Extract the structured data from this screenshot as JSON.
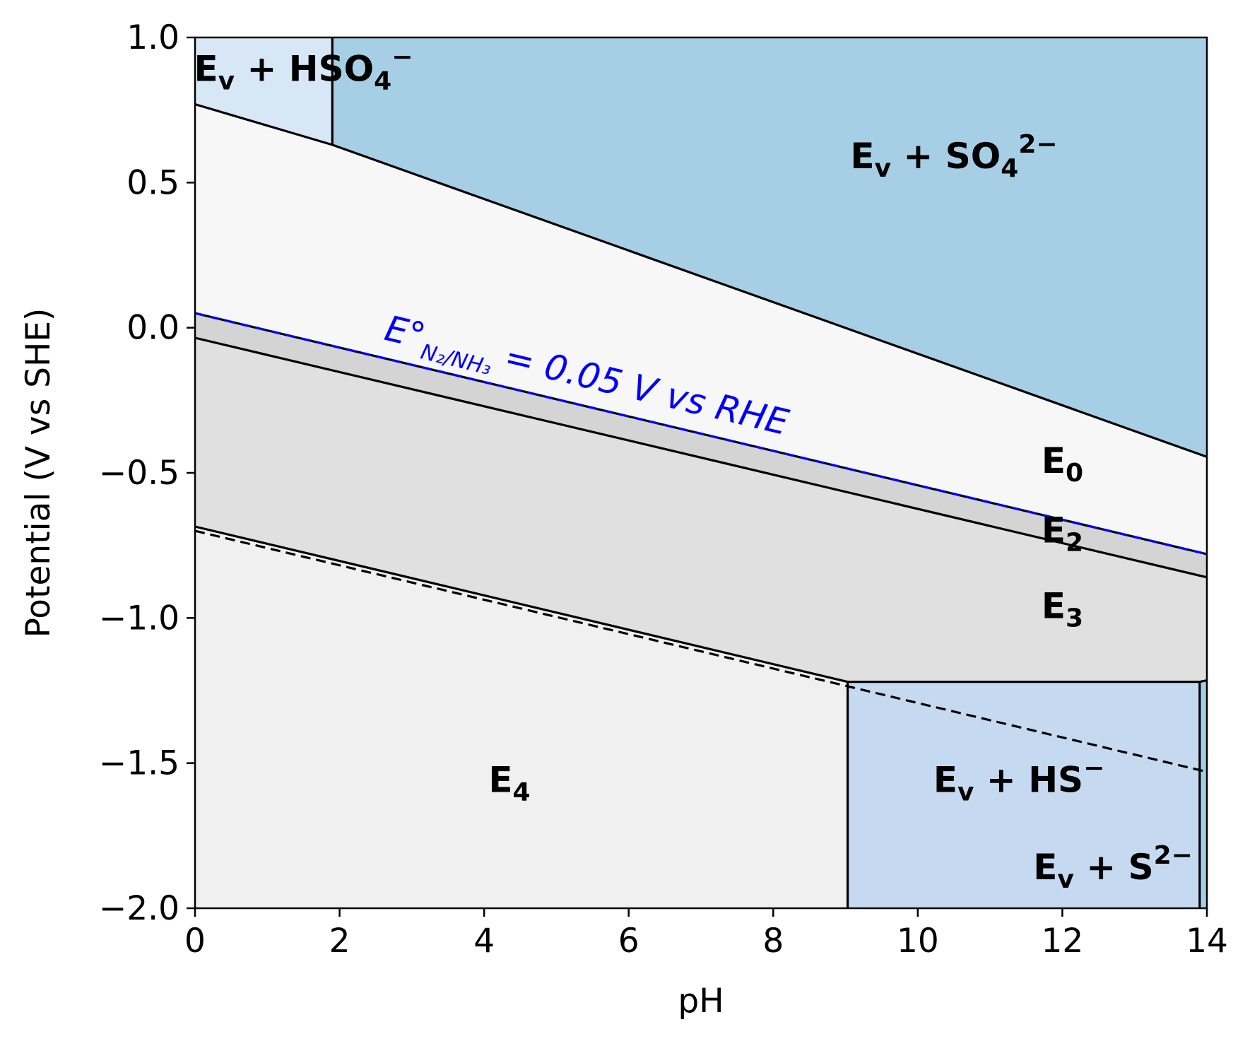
{
  "chart_data": {
    "type": "area",
    "xlabel": "pH",
    "ylabel": "Potential (V vs SHE)",
    "xlim": [
      0,
      14
    ],
    "ylim": [
      -2.0,
      1.0
    ],
    "xticks": [
      0,
      2,
      4,
      6,
      8,
      10,
      12,
      14
    ],
    "yticks": [
      1.0,
      0.5,
      0.0,
      -0.5,
      -1.0,
      -1.5,
      -2.0
    ],
    "xtick_labels": [
      "0",
      "2",
      "4",
      "6",
      "8",
      "10",
      "12",
      "14"
    ],
    "ytick_labels": [
      "1.0",
      "0.5",
      "0.0",
      "−0.5",
      "−1.0",
      "−1.5",
      "−2.0"
    ],
    "grid": false,
    "legend": "none",
    "regions": [
      {
        "name": "Ev+HSO4-",
        "color": "#d8e7f5",
        "label": {
          "main": "E",
          "sub": "v",
          "rest": " + HSO",
          "sub2": "4",
          "sup": "−"
        },
        "label_at": [
          1.5,
          0.85
        ],
        "polygon": [
          [
            0,
            1.0
          ],
          [
            1.9,
            1.0
          ],
          [
            1.9,
            0.63
          ],
          [
            0,
            0.77
          ]
        ]
      },
      {
        "name": "Ev+SO4 2-",
        "color": "#a6cfe5",
        "label": {
          "main": "E",
          "sub": "v",
          "rest": " + SO",
          "sub2": "4",
          "sup": "2−"
        },
        "label_at": [
          10.5,
          0.55
        ],
        "polygon": [
          [
            1.9,
            1.0
          ],
          [
            14,
            1.0
          ],
          [
            14,
            -0.445
          ],
          [
            1.9,
            0.63
          ]
        ]
      },
      {
        "name": "E0",
        "color": "#f7f7f7",
        "label": {
          "main": "E",
          "sub": "0"
        },
        "label_at": [
          12.0,
          -0.5
        ],
        "polygon": [
          [
            0,
            0.77
          ],
          [
            1.9,
            0.63
          ],
          [
            14,
            -0.445
          ],
          [
            14,
            -0.78
          ],
          [
            0,
            0.05
          ]
        ]
      },
      {
        "name": "E2",
        "color": "#d4d4d4",
        "label": {
          "main": "E",
          "sub": "2"
        },
        "label_at": [
          12.0,
          -0.74
        ],
        "polygon": [
          [
            0,
            0.05
          ],
          [
            14,
            -0.78
          ],
          [
            14,
            -0.86
          ],
          [
            0,
            -0.035
          ]
        ]
      },
      {
        "name": "E3",
        "color": "#e0e0e0",
        "label": {
          "main": "E",
          "sub": "3"
        },
        "label_at": [
          12.0,
          -1.0
        ],
        "polygon": [
          [
            0,
            -0.035
          ],
          [
            14,
            -0.86
          ],
          [
            14,
            -1.22
          ],
          [
            9.03,
            -1.22
          ],
          [
            0,
            -0.685
          ]
        ]
      },
      {
        "name": "E4",
        "color": "#f0f0f0",
        "label": {
          "main": "E",
          "sub": "4"
        },
        "label_at": [
          4.35,
          -1.6
        ],
        "polygon": [
          [
            0,
            -0.685
          ],
          [
            9.03,
            -1.22
          ],
          [
            9.03,
            -2.0
          ],
          [
            0,
            -2.0
          ]
        ]
      },
      {
        "name": "Ev+HS-",
        "color": "#c5daf0",
        "label": {
          "main": "E",
          "sub": "v",
          "rest": " + HS",
          "sup": "−"
        },
        "label_at": [
          11.4,
          -1.6
        ],
        "polygon": [
          [
            9.03,
            -1.22
          ],
          [
            13.9,
            -1.22
          ],
          [
            13.9,
            -2.0
          ],
          [
            9.03,
            -2.0
          ]
        ]
      },
      {
        "name": "Ev+S2-",
        "color": "#a6cfe5",
        "label": {
          "main": "E",
          "sub": "v",
          "rest": " + S",
          "sup": "2−"
        },
        "label_at": [
          12.7,
          -1.9
        ],
        "polygon": [
          [
            13.9,
            -1.22
          ],
          [
            14,
            -1.22
          ],
          [
            14,
            -2.0
          ],
          [
            13.9,
            -2.0
          ]
        ]
      }
    ],
    "boundaries": [
      {
        "style": "solid",
        "points": [
          [
            0,
            0.77
          ],
          [
            1.9,
            0.63
          ],
          [
            14,
            -0.445
          ]
        ]
      },
      {
        "style": "solid",
        "points": [
          [
            1.9,
            1.0
          ],
          [
            1.9,
            0.63
          ]
        ]
      },
      {
        "style": "solid",
        "points": [
          [
            0,
            0.05
          ],
          [
            14,
            -0.78
          ]
        ]
      },
      {
        "style": "solid",
        "points": [
          [
            0,
            -0.035
          ],
          [
            14,
            -0.86
          ]
        ]
      },
      {
        "style": "solid",
        "points": [
          [
            0,
            -0.685
          ],
          [
            9.03,
            -1.22
          ],
          [
            13.9,
            -1.22
          ],
          [
            14,
            -1.215
          ]
        ]
      },
      {
        "style": "solid",
        "points": [
          [
            9.03,
            -1.22
          ],
          [
            9.03,
            -2.0
          ]
        ]
      },
      {
        "style": "solid",
        "points": [
          [
            13.9,
            -1.22
          ],
          [
            13.9,
            -2.0
          ]
        ]
      },
      {
        "style": "dashed",
        "color": "#000000",
        "points": [
          [
            0,
            -0.7
          ],
          [
            14,
            -1.53
          ]
        ]
      },
      {
        "style": "dashed",
        "color": "#0000ff",
        "points": [
          [
            0,
            0.05
          ],
          [
            14,
            -0.78
          ]
        ]
      }
    ],
    "annotations": [
      {
        "text_main": "E°",
        "text_sub": "N₂/NH₃",
        "text_rest": " = 0.05 V vs RHE",
        "color": "#0000ff",
        "anchor": [
          2.6,
          -0.04
        ],
        "slope_line": [
          [
            0,
            0.05
          ],
          [
            14,
            -0.78
          ]
        ]
      }
    ]
  }
}
